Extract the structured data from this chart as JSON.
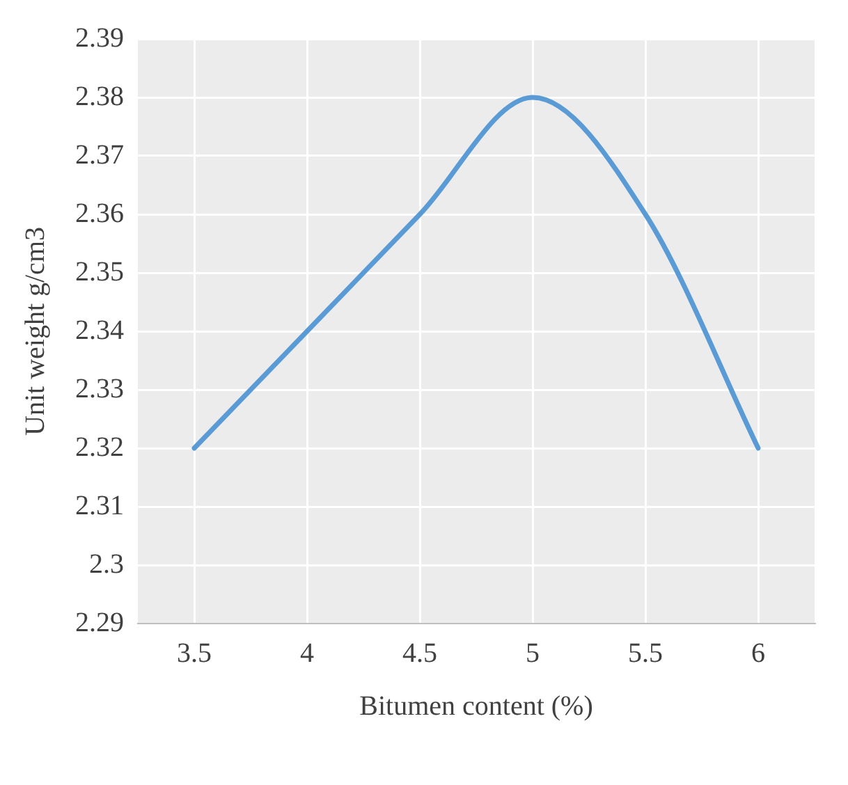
{
  "chart_data": {
    "type": "line",
    "xlabel": "Bitumen content (%)",
    "ylabel": "Unit weight g/cm3",
    "categories": [
      "3.5",
      "4",
      "4.5",
      "5",
      "5.5",
      "6"
    ],
    "series": [
      {
        "color": "#5b9bd5",
        "values": [
          2.32,
          2.34,
          2.36,
          2.38,
          2.36,
          2.32
        ]
      }
    ],
    "ylim": [
      2.29,
      2.39
    ],
    "yticks": [
      2.29,
      2.3,
      2.31,
      2.32,
      2.33,
      2.34,
      2.35,
      2.36,
      2.37,
      2.38,
      2.39
    ],
    "grid": true,
    "legend": false,
    "marker": "none",
    "line_style": "solid"
  }
}
